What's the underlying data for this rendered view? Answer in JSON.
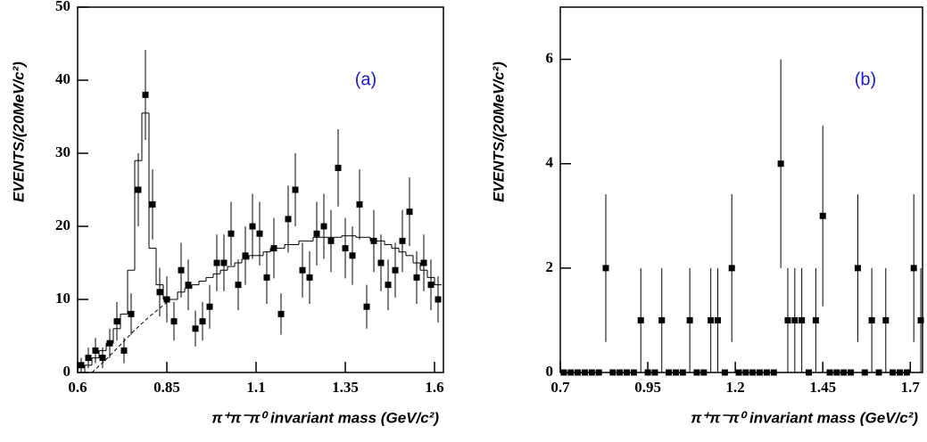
{
  "chart_data": [
    {
      "type": "histogram-points",
      "annotation": "(a)",
      "x_label": "π⁺π⁻π⁰ invariant mass (GeV/c²)",
      "y_label": "EVENTS/(20MeV/c²)",
      "xlim": [
        0.6,
        1.625
      ],
      "ylim": [
        0,
        50
      ],
      "xticks": [
        0.6,
        0.85,
        1.1,
        1.35,
        1.6
      ],
      "yticks": [
        0,
        10,
        20,
        30,
        40,
        50
      ],
      "x": [
        0.61,
        0.63,
        0.65,
        0.67,
        0.69,
        0.71,
        0.73,
        0.75,
        0.77,
        0.79,
        0.81,
        0.83,
        0.85,
        0.87,
        0.89,
        0.91,
        0.93,
        0.95,
        0.97,
        0.99,
        1.01,
        1.03,
        1.05,
        1.07,
        1.09,
        1.11,
        1.13,
        1.15,
        1.17,
        1.19,
        1.21,
        1.23,
        1.25,
        1.27,
        1.29,
        1.31,
        1.33,
        1.35,
        1.37,
        1.39,
        1.41,
        1.43,
        1.45,
        1.47,
        1.49,
        1.51,
        1.53,
        1.55,
        1.57,
        1.59,
        1.61
      ],
      "values": [
        1,
        2,
        3,
        2,
        4,
        7,
        3,
        8,
        25,
        38,
        23,
        11,
        10,
        7,
        14,
        12,
        6,
        7,
        9,
        15,
        15,
        19,
        12,
        16,
        20,
        19,
        13,
        17,
        8,
        21,
        25,
        14,
        13,
        19,
        20,
        18,
        28,
        17,
        16,
        23,
        9,
        18,
        15,
        12,
        14,
        18,
        22,
        13,
        15,
        12,
        10
      ],
      "histogram": [
        0,
        1,
        2,
        3,
        4,
        6,
        8,
        14,
        29,
        35.5,
        17,
        12,
        10,
        10,
        11,
        11.5,
        12,
        12.5,
        13,
        13.5,
        14,
        14.5,
        15,
        15.5,
        16,
        16,
        16.5,
        17,
        17,
        17.5,
        17.5,
        18,
        18,
        18.5,
        18.5,
        18.5,
        18.5,
        18.7,
        18.7,
        18.5,
        18.5,
        18,
        18,
        17.5,
        17,
        16.5,
        16,
        15,
        14,
        13,
        12
      ],
      "fit": {
        "x": [
          0.64,
          0.68,
          0.72,
          0.76,
          0.8,
          0.84,
          0.86
        ],
        "values": [
          0,
          1.8,
          3.8,
          5.8,
          7.6,
          9.2,
          10
        ]
      }
    },
    {
      "type": "histogram-points",
      "annotation": "(b)",
      "x_label": "π⁺π⁻π⁰ invariant mass (GeV/c²)",
      "y_label": "EVENTS/(20MeV/c²)",
      "xlim": [
        0.7,
        1.735
      ],
      "ylim": [
        0,
        7
      ],
      "xticks": [
        0.7,
        0.95,
        1.2,
        1.45,
        1.7
      ],
      "yticks": [
        0,
        2,
        4,
        6
      ],
      "x": [
        0.71,
        0.73,
        0.75,
        0.77,
        0.79,
        0.81,
        0.83,
        0.85,
        0.87,
        0.89,
        0.91,
        0.93,
        0.95,
        0.97,
        0.99,
        1.01,
        1.03,
        1.05,
        1.07,
        1.09,
        1.11,
        1.13,
        1.15,
        1.17,
        1.19,
        1.21,
        1.23,
        1.25,
        1.27,
        1.29,
        1.31,
        1.33,
        1.35,
        1.37,
        1.39,
        1.41,
        1.43,
        1.45,
        1.47,
        1.49,
        1.51,
        1.53,
        1.55,
        1.57,
        1.59,
        1.61,
        1.63,
        1.65,
        1.67,
        1.69,
        1.71,
        1.73
      ],
      "values": [
        0,
        0,
        0,
        0,
        0,
        0,
        2,
        0,
        0,
        0,
        0,
        1,
        0,
        0,
        1,
        0,
        0,
        0,
        1,
        0,
        0,
        1,
        1,
        0,
        2,
        0,
        0,
        0,
        0,
        0,
        0,
        4,
        1,
        1,
        1,
        0,
        1,
        3,
        0,
        0,
        0,
        0,
        2,
        0,
        1,
        0,
        1,
        0,
        0,
        0,
        2,
        1
      ]
    }
  ]
}
